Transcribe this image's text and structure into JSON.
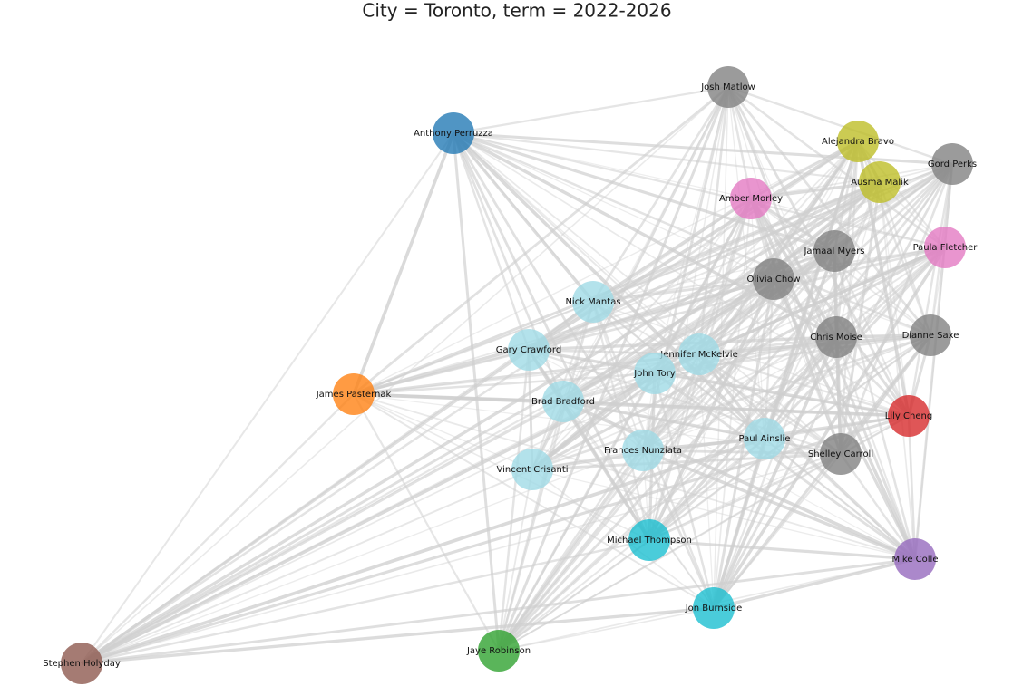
{
  "header": {
    "title": "City = Toronto, term = 2022-2026"
  },
  "nodes": [
    {
      "label": "Josh Matlow",
      "color": "#7f7f7f"
    },
    {
      "label": "Anthony Perruzza",
      "color": "#1f77b4"
    },
    {
      "label": "Alejandra Bravo",
      "color": "#bcbd22"
    },
    {
      "label": "Gord Perks",
      "color": "#7f7f7f"
    },
    {
      "label": "Ausma Malik",
      "color": "#bcbd22"
    },
    {
      "label": "Amber Morley",
      "color": "#e377c2"
    },
    {
      "label": "Jamaal Myers",
      "color": "#7f7f7f"
    },
    {
      "label": "Paula Fletcher",
      "color": "#e377c2"
    },
    {
      "label": "Olivia Chow",
      "color": "#7f7f7f"
    },
    {
      "label": "Nick Mantas",
      "color": "#9edae5"
    },
    {
      "label": "Gary Crawford",
      "color": "#9edae5"
    },
    {
      "label": "Jennifer McKelvie",
      "color": "#9edae5"
    },
    {
      "label": "Chris Moise",
      "color": "#7f7f7f"
    },
    {
      "label": "Dianne Saxe",
      "color": "#7f7f7f"
    },
    {
      "label": "John Tory",
      "color": "#9edae5"
    },
    {
      "label": "James Pasternak",
      "color": "#ff7f0e"
    },
    {
      "label": "Brad Bradford",
      "color": "#9edae5"
    },
    {
      "label": "Lily Cheng",
      "color": "#d62728"
    },
    {
      "label": "Paul Ainslie",
      "color": "#9edae5"
    },
    {
      "label": "Frances Nunziata",
      "color": "#9edae5"
    },
    {
      "label": "Shelley Carroll",
      "color": "#7f7f7f"
    },
    {
      "label": "Vincent Crisanti",
      "color": "#9edae5"
    },
    {
      "label": "Michael Thompson",
      "color": "#17becf"
    },
    {
      "label": "Mike Colle",
      "color": "#9467bd"
    },
    {
      "label": "Jon Burnside",
      "color": "#17becf"
    },
    {
      "label": "Jaye Robinson",
      "color": "#2ca02c"
    },
    {
      "label": "Stephen Holyday",
      "color": "#8c564b"
    }
  ]
}
